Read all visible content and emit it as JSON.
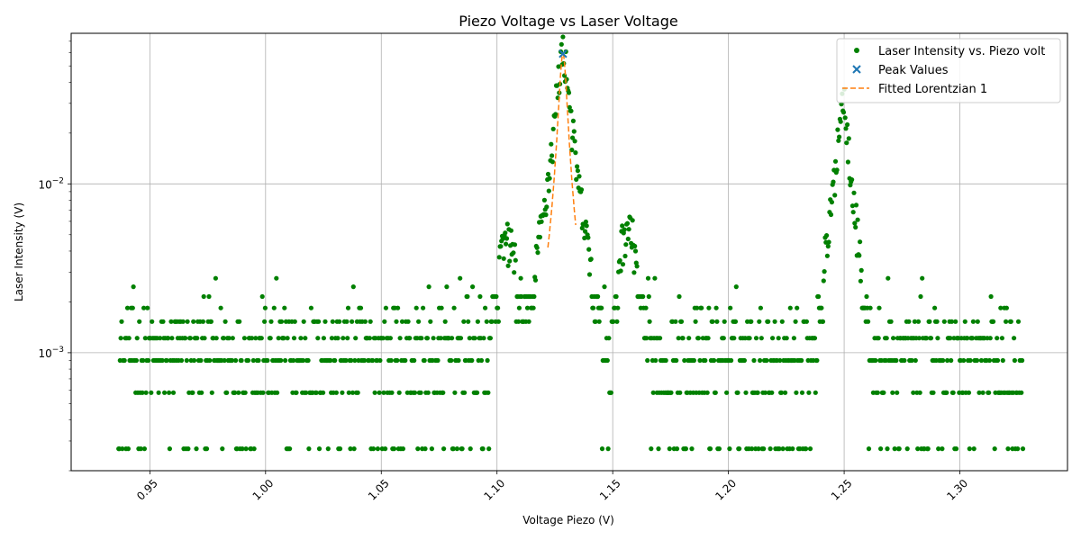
{
  "chart_data": {
    "type": "scatter",
    "title": "Piezo Voltage vs Laser Voltage",
    "xlabel": "Voltage Piezo (V)",
    "ylabel": "Laser Intensity (V)",
    "xlim": [
      0.916,
      1.3465
    ],
    "ylim": [
      0.0002,
      0.078
    ],
    "yscale": "log",
    "grid": true,
    "legend_position": "top-right",
    "x_ticks": [
      0.95,
      1.0,
      1.05,
      1.1,
      1.15,
      1.2,
      1.25,
      1.3
    ],
    "x_tick_labels": [
      "0.95",
      "1.00",
      "1.05",
      "1.10",
      "1.15",
      "1.20",
      "1.25",
      "1.30"
    ],
    "y_ticks": [
      0.001,
      0.01
    ],
    "y_tick_labels": [
      {
        "base": "10",
        "exp": "−3"
      },
      {
        "base": "10",
        "exp": "−2"
      }
    ],
    "x_range_data": [
      0.9365,
      1.3275
    ],
    "quantized_levels": [
      0.00027,
      0.00058,
      0.0009,
      0.00122,
      0.00153,
      0.00184,
      0.00215,
      0.00246,
      0.00276
    ],
    "series": [
      {
        "name": "Laser Intensity vs. Piezo volt",
        "kind": "scatter",
        "color": "#008000",
        "marker": "circle",
        "peaks": [
          {
            "x": 1.1285,
            "y": 0.059,
            "width": 0.006
          },
          {
            "x": 1.2495,
            "y": 0.031,
            "width": 0.0055
          },
          {
            "x": 1.1045,
            "y": 0.0045,
            "width": 0.012
          },
          {
            "x": 1.1565,
            "y": 0.0055,
            "width": 0.01
          },
          {
            "x": 1.2435,
            "y": 0.0045,
            "width": 0.008
          }
        ]
      },
      {
        "name": "Peak Values",
        "kind": "scatter",
        "color": "#1f77b4",
        "marker": "x",
        "points": [
          {
            "x": 1.1285,
            "y": 0.059
          }
        ]
      },
      {
        "name": "Fitted Lorentzian 1",
        "kind": "line",
        "color": "#ff7f0e",
        "dash": "dashed",
        "center": 1.1285,
        "amplitude": 0.059,
        "hwhm": 0.0018,
        "x_range": [
          1.122,
          1.134
        ]
      }
    ]
  }
}
